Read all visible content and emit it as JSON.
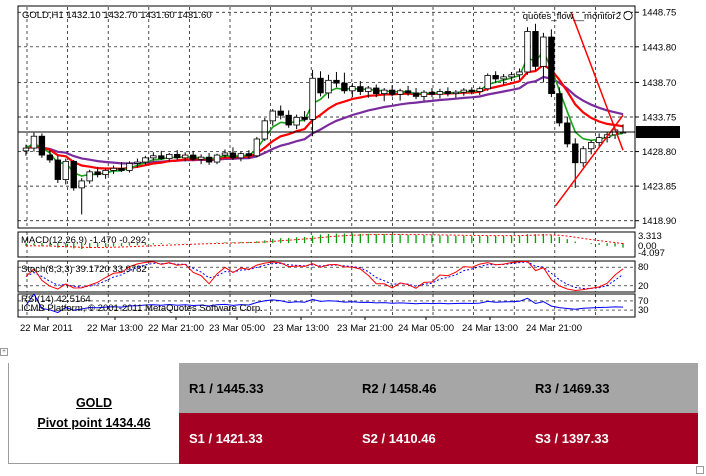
{
  "chart_data": {
    "type": "candlestick",
    "symbol_header": "GOLD,H1",
    "ohlc_header": "1432.10 1432.70 1431.60 1431.60",
    "watermark_top": "quotes_flow__monitor2",
    "watermark_bottom": "ICMB Platform, © 2001-2011 MetaQuotes Software Corp.",
    "price_ticks": [
      "1448.75",
      "1443.80",
      "1438.70",
      "1433.75",
      "1428.80",
      "1423.85",
      "1418.90"
    ],
    "price_tick_values": [
      1448.75,
      1443.8,
      1438.7,
      1433.75,
      1428.8,
      1423.85,
      1418.9
    ],
    "current_price": "1431.60",
    "current_price_value": 1431.6,
    "ylim": [
      1418.0,
      1449.5
    ],
    "x_labels": [
      "22 Mar 2011",
      "22 Mar 13:00",
      "22 Mar 21:00",
      "23 Mar 05:00",
      "23 Mar 13:00",
      "23 Mar 21:00",
      "24 Mar 05:00",
      "24 Mar 13:00",
      "24 Mar 21:00"
    ],
    "candles": [
      [
        1428.9,
        1429.8,
        1428.2,
        1429.3
      ],
      [
        1429.3,
        1431.5,
        1428.8,
        1431.0
      ],
      [
        1431.0,
        1431.4,
        1427.9,
        1428.3
      ],
      [
        1428.3,
        1429.0,
        1427.2,
        1427.6
      ],
      [
        1427.6,
        1428.2,
        1424.3,
        1424.8
      ],
      [
        1424.8,
        1427.8,
        1424.1,
        1427.4
      ],
      [
        1427.4,
        1427.6,
        1423.2,
        1423.6
      ],
      [
        1423.6,
        1425.0,
        1419.8,
        1424.6
      ],
      [
        1424.6,
        1426.2,
        1424.2,
        1425.9
      ],
      [
        1425.9,
        1426.6,
        1425.1,
        1425.5
      ],
      [
        1425.5,
        1426.4,
        1424.9,
        1426.1
      ],
      [
        1426.1,
        1426.8,
        1425.6,
        1426.4
      ],
      [
        1426.4,
        1427.3,
        1425.9,
        1426.1
      ],
      [
        1426.1,
        1427.4,
        1425.8,
        1427.1
      ],
      [
        1427.1,
        1427.8,
        1426.5,
        1427.3
      ],
      [
        1427.3,
        1428.2,
        1426.9,
        1427.9
      ],
      [
        1427.9,
        1428.7,
        1427.5,
        1428.2
      ],
      [
        1428.2,
        1428.9,
        1427.6,
        1427.8
      ],
      [
        1427.8,
        1428.6,
        1427.3,
        1428.4
      ],
      [
        1428.4,
        1429.0,
        1427.6,
        1427.9
      ],
      [
        1427.9,
        1428.7,
        1427.4,
        1428.3
      ],
      [
        1428.3,
        1428.9,
        1427.5,
        1427.7
      ],
      [
        1427.7,
        1428.4,
        1427.0,
        1428.0
      ],
      [
        1428.0,
        1428.6,
        1426.9,
        1427.3
      ],
      [
        1427.3,
        1428.5,
        1427.0,
        1428.3
      ],
      [
        1428.3,
        1429.1,
        1427.9,
        1428.6
      ],
      [
        1428.6,
        1429.4,
        1427.6,
        1427.9
      ],
      [
        1427.9,
        1428.8,
        1427.4,
        1428.5
      ],
      [
        1428.5,
        1429.0,
        1427.8,
        1428.2
      ],
      [
        1428.2,
        1430.9,
        1428.0,
        1430.6
      ],
      [
        1430.6,
        1433.6,
        1430.3,
        1433.2
      ],
      [
        1433.2,
        1434.9,
        1432.5,
        1434.6
      ],
      [
        1434.6,
        1435.4,
        1433.4,
        1434.0
      ],
      [
        1434.0,
        1434.7,
        1432.2,
        1432.6
      ],
      [
        1432.6,
        1434.1,
        1432.0,
        1433.7
      ],
      [
        1433.7,
        1434.6,
        1433.1,
        1433.4
      ],
      [
        1433.4,
        1440.5,
        1431.0,
        1439.3
      ],
      [
        1439.3,
        1440.3,
        1436.7,
        1437.2
      ],
      [
        1437.2,
        1439.8,
        1436.4,
        1439.0
      ],
      [
        1439.0,
        1440.2,
        1438.0,
        1438.6
      ],
      [
        1438.6,
        1440.1,
        1437.1,
        1437.5
      ],
      [
        1437.5,
        1438.6,
        1436.6,
        1438.1
      ],
      [
        1438.1,
        1438.9,
        1436.9,
        1437.4
      ],
      [
        1437.4,
        1438.2,
        1436.5,
        1437.9
      ],
      [
        1437.9,
        1438.4,
        1436.6,
        1437.1
      ],
      [
        1437.1,
        1437.9,
        1436.0,
        1437.6
      ],
      [
        1437.6,
        1438.3,
        1436.7,
        1437.0
      ],
      [
        1437.0,
        1437.8,
        1436.1,
        1437.5
      ],
      [
        1437.5,
        1438.2,
        1436.8,
        1437.2
      ],
      [
        1437.2,
        1437.9,
        1436.3,
        1436.7
      ],
      [
        1436.7,
        1437.6,
        1436.1,
        1437.3
      ],
      [
        1437.3,
        1437.9,
        1436.6,
        1437.0
      ],
      [
        1437.0,
        1437.8,
        1436.4,
        1437.4
      ],
      [
        1437.4,
        1438.0,
        1436.7,
        1437.1
      ],
      [
        1437.1,
        1437.6,
        1436.5,
        1437.3
      ],
      [
        1437.3,
        1437.9,
        1436.8,
        1437.6
      ],
      [
        1437.6,
        1438.0,
        1437.0,
        1437.4
      ],
      [
        1437.4,
        1438.1,
        1436.9,
        1437.8
      ],
      [
        1437.8,
        1440.0,
        1437.5,
        1439.7
      ],
      [
        1439.7,
        1440.3,
        1438.6,
        1439.2
      ],
      [
        1439.2,
        1439.9,
        1438.4,
        1439.5
      ],
      [
        1439.5,
        1440.2,
        1438.9,
        1439.8
      ],
      [
        1439.8,
        1440.7,
        1439.1,
        1440.2
      ],
      [
        1440.2,
        1446.6,
        1439.8,
        1446.0
      ],
      [
        1446.0,
        1447.1,
        1440.4,
        1441.0
      ],
      [
        1441.0,
        1445.8,
        1438.7,
        1445.2
      ],
      [
        1445.2,
        1446.3,
        1436.6,
        1437.1
      ],
      [
        1437.1,
        1438.0,
        1432.4,
        1432.9
      ],
      [
        1432.9,
        1433.8,
        1429.4,
        1429.9
      ],
      [
        1429.9,
        1430.7,
        1423.6,
        1427.2
      ],
      [
        1427.2,
        1429.6,
        1426.6,
        1429.2
      ],
      [
        1429.2,
        1430.4,
        1428.4,
        1430.1
      ],
      [
        1430.1,
        1431.4,
        1429.5,
        1430.8
      ],
      [
        1430.8,
        1431.6,
        1430.1,
        1431.2
      ],
      [
        1431.2,
        1432.1,
        1430.6,
        1431.9
      ],
      [
        1431.6,
        1432.7,
        1431.6,
        1431.6
      ]
    ],
    "macd_label": "MACD(12,26,9) -1.470 -0.292",
    "macd_ticks": [
      "3.313",
      "0.00",
      "-4.097"
    ],
    "macd_ylim": [
      -4.5,
      3.6
    ],
    "macd_hist": [
      -0.9,
      -0.8,
      -1.0,
      -1.1,
      -1.5,
      -1.4,
      -1.7,
      -1.9,
      -1.6,
      -1.4,
      -1.3,
      -1.1,
      -1.0,
      -0.8,
      -0.7,
      -0.6,
      -0.4,
      -0.3,
      -0.2,
      -0.1,
      -0.1,
      0.0,
      0.1,
      0.1,
      0.2,
      0.3,
      0.3,
      0.4,
      0.4,
      0.6,
      0.9,
      1.3,
      1.6,
      1.7,
      1.9,
      2.0,
      2.4,
      2.8,
      3.0,
      3.1,
      3.1,
      3.1,
      3.0,
      3.0,
      2.9,
      2.9,
      2.8,
      2.8,
      2.7,
      2.7,
      2.6,
      2.6,
      2.5,
      2.5,
      2.4,
      2.4,
      2.3,
      2.3,
      2.4,
      2.4,
      2.4,
      2.4,
      2.4,
      2.9,
      2.9,
      3.0,
      2.6,
      2.0,
      1.3,
      0.5,
      0.0,
      -0.3,
      -0.6,
      -0.9,
      -1.1,
      -1.5
    ],
    "stoch_label": "Stoch(8,3,3) 39.1720 33.9782",
    "stoch_ticks": [
      "80",
      "20"
    ],
    "rsi_label": "RSI(14) 42.5164",
    "rsi_ticks": [
      "70",
      "30"
    ],
    "trendlines": [
      {
        "x1": 68.5,
        "y1": 1448.7,
        "x2": 75.0,
        "y2": 1429.0
      },
      {
        "x1": 66.5,
        "y1": 1421.0,
        "x2": 75.0,
        "y2": 1434.0
      }
    ],
    "colors": {
      "bull": "#ffffff",
      "bear": "#000000",
      "ema_fast": "#1aa21a",
      "ema_mid": "#ff0000",
      "ema_slow": "#7a2b9e",
      "macd_hist": "#00a000",
      "macd_signal": "#ff0000",
      "stoch_main": "#ff0000",
      "stoch_signal": "#0000ff",
      "rsi": "#0000ff",
      "trendline": "#ff0000"
    }
  },
  "pivot_table": {
    "symbol": "GOLD",
    "pivot": "Pivot point 1434.46",
    "r1": "R1 / 1445.33",
    "r2": "R2 / 1458.46",
    "r3": "R3 / 1469.33",
    "s1": "S1 / 1421.33",
    "s2": "S2 / 1410.46",
    "s3": "S3 / 1397.33"
  }
}
